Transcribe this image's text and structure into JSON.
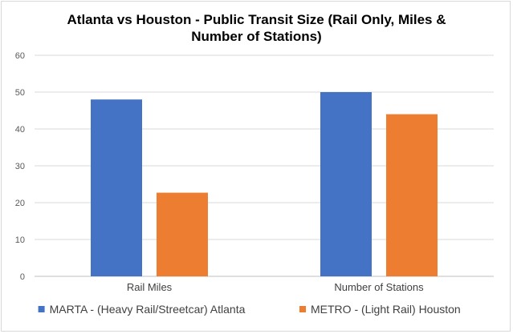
{
  "chart_data": {
    "type": "bar",
    "title_lines": [
      "Atlanta vs Houston - Public Transit Size (Rail Only, Miles &",
      "Number of Stations)"
    ],
    "categories": [
      "Rail Miles",
      "Number of Stations"
    ],
    "series": [
      {
        "name": "MARTA - (Heavy Rail/Streetcar) Atlanta",
        "values": [
          48,
          50
        ],
        "color": "#4472c4"
      },
      {
        "name": "METRO - (Light Rail) Houston",
        "values": [
          22.7,
          44
        ],
        "color": "#ed7d31"
      }
    ],
    "ylim": [
      0,
      60
    ],
    "yticks": [
      "0",
      "10",
      "20",
      "30",
      "40",
      "50",
      "60"
    ],
    "grid": true,
    "legend_position": "bottom"
  }
}
